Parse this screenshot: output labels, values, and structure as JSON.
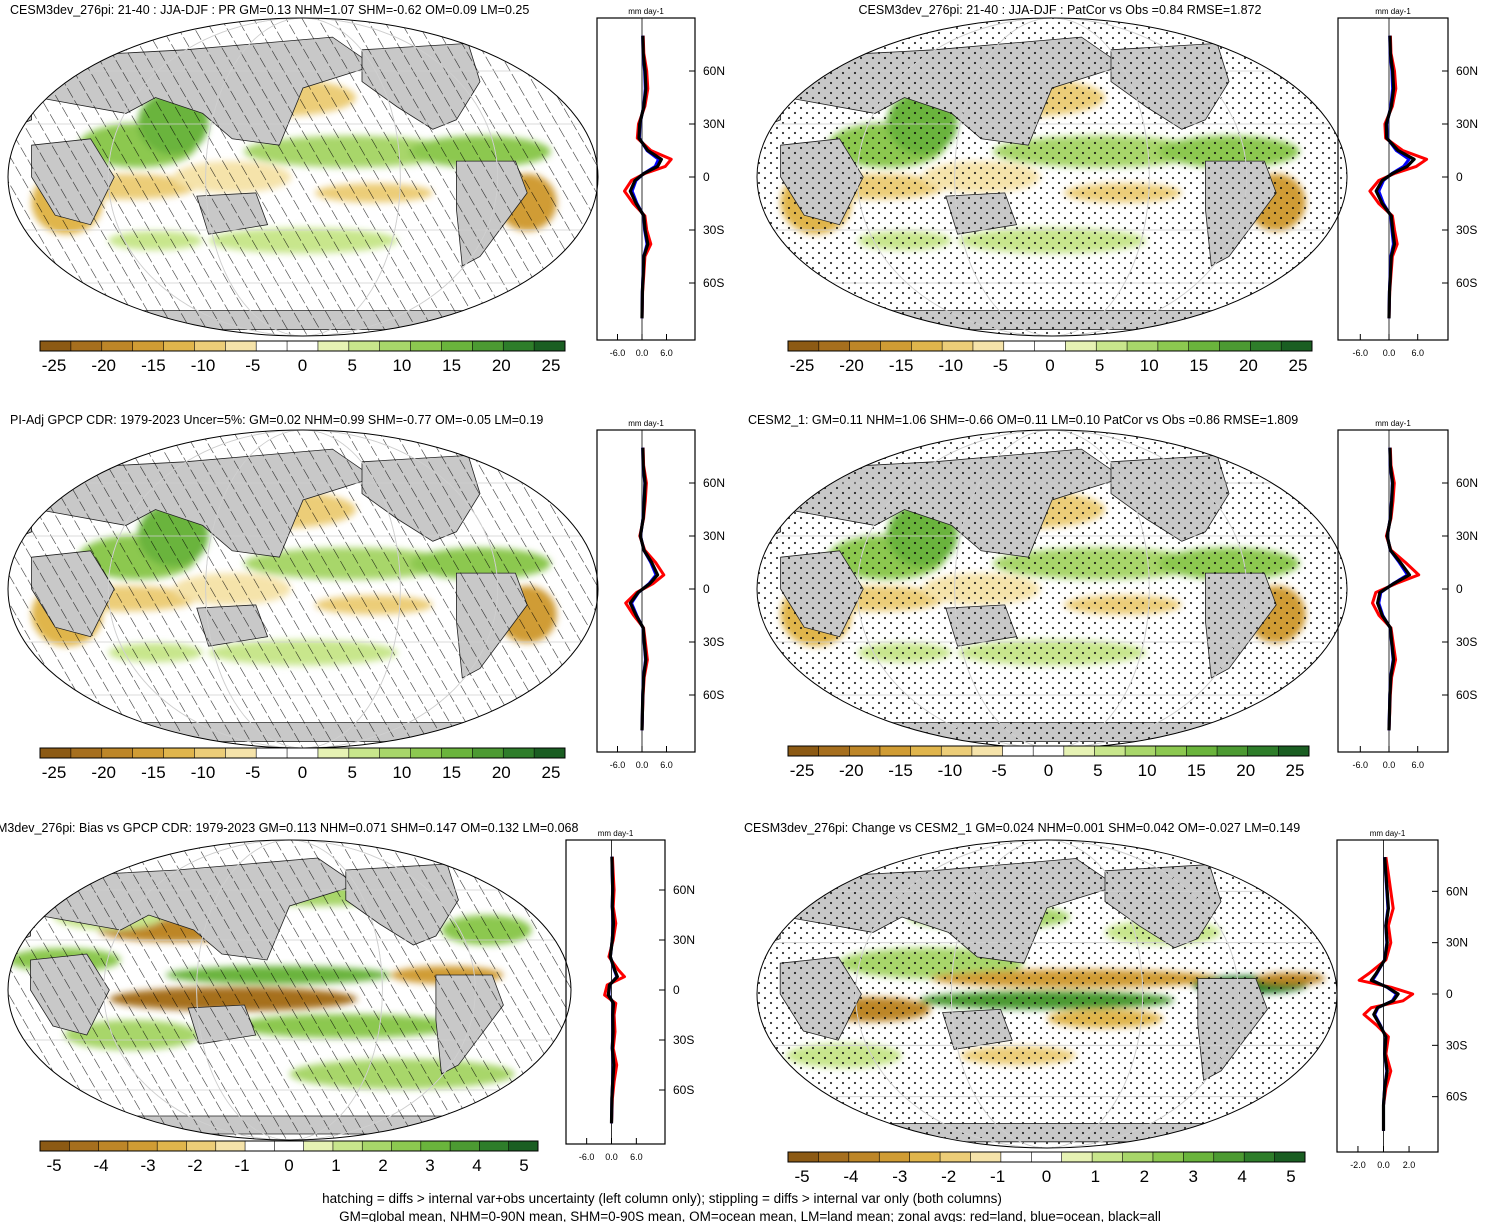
{
  "footer": {
    "line1": "hatching = diffs > internal var+obs uncertainty (left column only); stippling = diffs > internal var only (both columns)",
    "line2": "GM=global mean, NHM=0-90N mean, SHM=0-90S mean, OM=ocean mean, LM=land mean; zonal avgs: red=land, blue=ocean, black=all"
  },
  "colors": {
    "land": "#c8c8c8",
    "graticule": "#cfcfcf",
    "zonal_land": "#ff0000",
    "zonal_ocean": "#0000ff",
    "zonal_all": "#000000",
    "palette": [
      "#8c5a14",
      "#a66f1e",
      "#bd8628",
      "#d09c34",
      "#e0b54c",
      "#eccd78",
      "#f5e3aa",
      "#ffffff",
      "#ffffff",
      "#e6f2b4",
      "#c8e68c",
      "#a8d66a",
      "#8cc850",
      "#6ab43c",
      "#4c9a32",
      "#2e7d2a",
      "#1a5e22"
    ]
  },
  "chart_data": [
    {
      "type": "heatmap",
      "panel": "top-left",
      "title": "CESM3dev_276pi: 21-40 : JJA-DJF : PR GM=0.13 NHM=1.07 SHM=-0.62 OM=0.09 LM=0.25",
      "zonal_unit": "mm day-1",
      "colorbar_ticks": [
        "-25",
        "-20",
        "-15",
        "-10",
        "-5",
        "0",
        "5",
        "10",
        "15",
        "20",
        "25"
      ],
      "zonal_xticks": [
        "-6.0",
        "0.0",
        "6.0"
      ],
      "lat_ticks": [
        "60N",
        "30N",
        "0",
        "30S",
        "60S"
      ],
      "hatching": true,
      "stippling": false
    },
    {
      "type": "heatmap",
      "panel": "top-right",
      "title": "CESM3dev_276pi: 21-40 : JJA-DJF : PatCor vs Obs =0.84 RMSE=1.872",
      "zonal_unit": "mm day-1",
      "colorbar_ticks": [
        "-25",
        "-20",
        "-15",
        "-10",
        "-5",
        "0",
        "5",
        "10",
        "15",
        "20",
        "25"
      ],
      "zonal_xticks": [
        "-6.0",
        "0.0",
        "6.0"
      ],
      "lat_ticks": [
        "60N",
        "30N",
        "0",
        "30S",
        "60S"
      ],
      "hatching": false,
      "stippling": true
    },
    {
      "type": "heatmap",
      "panel": "middle-left",
      "title": "PI-Adj GPCP CDR: 1979-2023 Uncer=5%: GM=0.02 NHM=0.99 SHM=-0.77 OM=-0.05 LM=0.19",
      "zonal_unit": "mm day-1",
      "colorbar_ticks": [
        "-25",
        "-20",
        "-15",
        "-10",
        "-5",
        "0",
        "5",
        "10",
        "15",
        "20",
        "25"
      ],
      "zonal_xticks": [
        "-6.0",
        "0.0",
        "6.0"
      ],
      "lat_ticks": [
        "60N",
        "30N",
        "0",
        "30S",
        "60S"
      ],
      "hatching": true,
      "stippling": false
    },
    {
      "type": "heatmap",
      "panel": "middle-right",
      "title": "CESM2_1: GM=0.11 NHM=1.06 SHM=-0.66 OM=0.11 LM=0.10 PatCor vs Obs =0.86 RMSE=1.809",
      "zonal_unit": "mm day-1",
      "colorbar_ticks": [
        "-25",
        "-20",
        "-15",
        "-10",
        "-5",
        "0",
        "5",
        "10",
        "15",
        "20",
        "25"
      ],
      "zonal_xticks": [
        "-6.0",
        "0.0",
        "6.0"
      ],
      "lat_ticks": [
        "60N",
        "30N",
        "0",
        "30S",
        "60S"
      ],
      "hatching": false,
      "stippling": true
    },
    {
      "type": "heatmap",
      "panel": "bottom-left",
      "title": "M3dev_276pi: Bias vs GPCP CDR: 1979-2023 GM=0.113 NHM=0.071 SHM=0.147 OM=0.132 LM=0.068",
      "zonal_unit": "mm day-1",
      "colorbar_ticks": [
        "-5",
        "-4",
        "-3",
        "-2",
        "-1",
        "0",
        "1",
        "2",
        "3",
        "4",
        "5"
      ],
      "zonal_xticks": [
        "-6.0",
        "0.0",
        "6.0"
      ],
      "lat_ticks": [
        "60N",
        "30N",
        "0",
        "30S",
        "60S"
      ],
      "hatching": true,
      "stippling": false
    },
    {
      "type": "heatmap",
      "panel": "bottom-right",
      "title": "CESM3dev_276pi: Change vs CESM2_1 GM=0.024 NHM=0.001 SHM=0.042 OM=-0.027 LM=0.149",
      "zonal_unit": "mm day-1",
      "colorbar_ticks": [
        "-5",
        "-4",
        "-3",
        "-2",
        "-1",
        "0",
        "1",
        "2",
        "3",
        "4",
        "5"
      ],
      "zonal_xticks": [
        "-2.0",
        "0.0",
        "2.0"
      ],
      "lat_ticks": [
        "60N",
        "30N",
        "0",
        "30S",
        "60S"
      ],
      "hatching": false,
      "stippling": true
    }
  ]
}
